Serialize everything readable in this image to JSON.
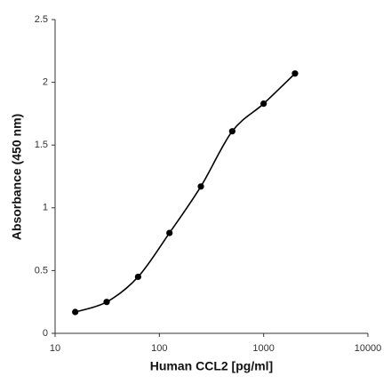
{
  "chart_data": {
    "type": "line",
    "x_label": "Human CCL2 [pg/ml]",
    "y_label": "Absorbance (450 nm)",
    "x": [
      15.6,
      31.25,
      62.5,
      125,
      250,
      500,
      1000,
      2000
    ],
    "values": [
      0.17,
      0.25,
      0.45,
      0.8,
      1.17,
      1.61,
      1.83,
      2.07
    ],
    "color": "#000000",
    "x_log": true,
    "xlim": [
      10,
      10000
    ],
    "xticks": [
      10,
      100,
      1000,
      10000
    ],
    "ylim": [
      0,
      2.5
    ],
    "yticks": [
      0,
      0.5,
      1,
      1.5,
      2,
      2.5
    ],
    "grid": false
  }
}
